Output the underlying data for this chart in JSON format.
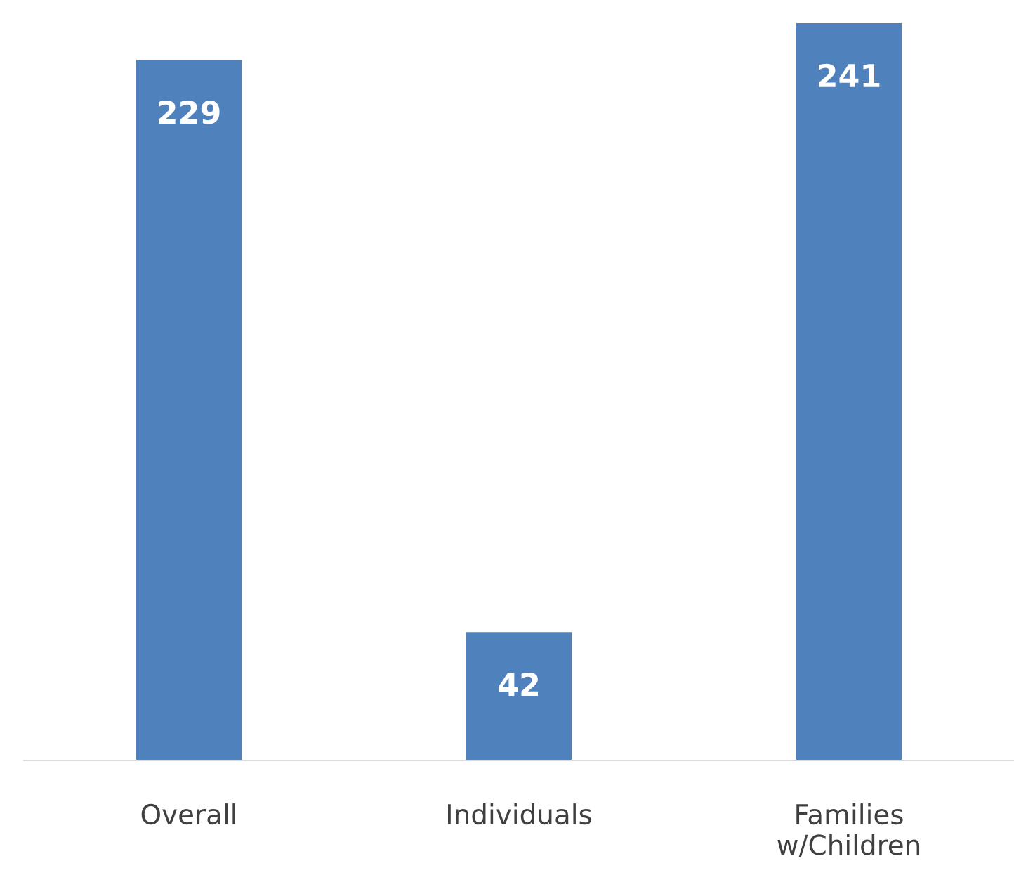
{
  "chart_data": {
    "type": "bar",
    "categories": [
      "Overall",
      "Individuals",
      "Families\nw/Children"
    ],
    "values": [
      229,
      42,
      241
    ],
    "color": "#4f81bd",
    "data_labels": true,
    "grid": false,
    "legend": false
  }
}
